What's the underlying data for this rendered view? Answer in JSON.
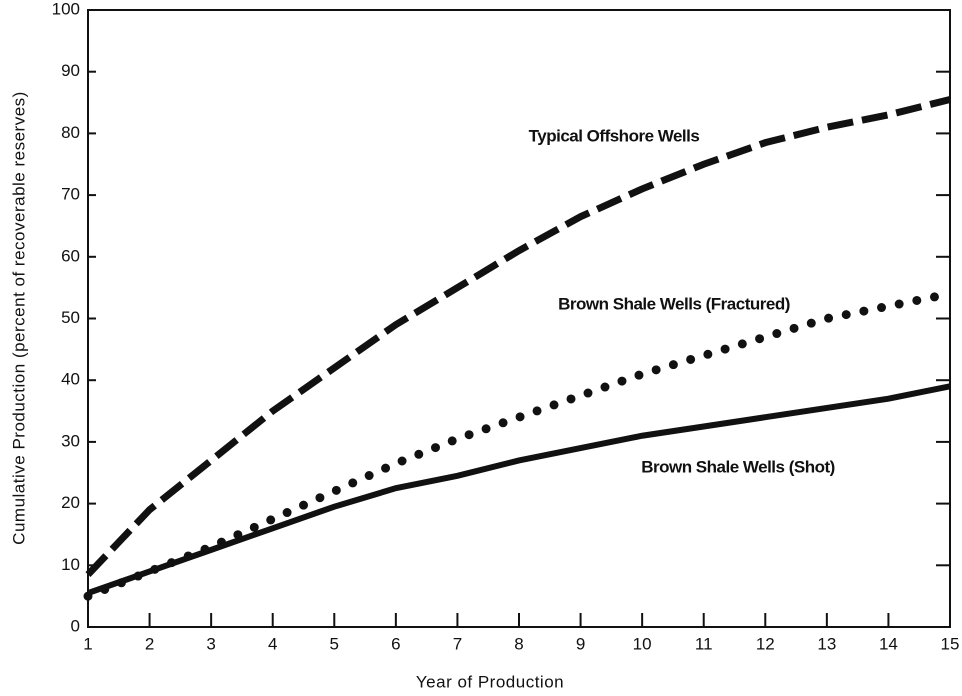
{
  "chart_data": {
    "type": "line",
    "x_label": "Year of Production",
    "y_label": "Cumulative Production (percent of recoverable reserves)",
    "x": [
      1,
      2,
      3,
      4,
      5,
      6,
      7,
      8,
      9,
      10,
      11,
      12,
      13,
      14,
      15
    ],
    "series": [
      {
        "name": "Typical Offshore Wells",
        "color": "#111111",
        "style": "dashed",
        "values": [
          8.5,
          19,
          27,
          35,
          42,
          49,
          55,
          61,
          66.5,
          71,
          75,
          78.5,
          81,
          83,
          85.5
        ]
      },
      {
        "name": "Brown Shale Wells (Fractured)",
        "color": "#111111",
        "style": "dotted",
        "values": [
          5,
          9,
          13,
          17.5,
          22,
          26.5,
          30.5,
          34,
          37.5,
          41,
          44,
          47,
          50,
          52,
          54
        ]
      },
      {
        "name": "Brown Shale Wells (Shot)",
        "color": "#111111",
        "style": "solid",
        "values": [
          5.5,
          9,
          12.5,
          16,
          19.5,
          22.5,
          24.5,
          27,
          29,
          31,
          32.5,
          34,
          35.5,
          37,
          39
        ]
      }
    ],
    "xlim": [
      1,
      15
    ],
    "ylim": [
      0,
      100
    ],
    "xticks": [
      1,
      2,
      3,
      4,
      5,
      6,
      7,
      8,
      9,
      10,
      11,
      12,
      13,
      14,
      15
    ],
    "yticks": [
      0,
      10,
      20,
      30,
      40,
      50,
      60,
      70,
      80,
      90,
      100
    ],
    "grid": false
  }
}
